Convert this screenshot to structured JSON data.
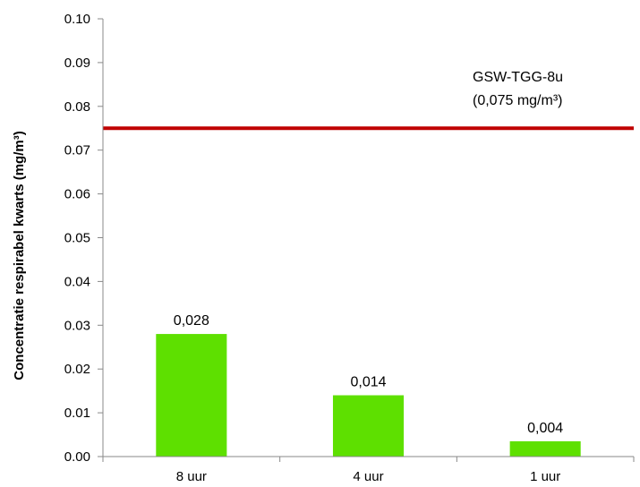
{
  "chart_data": {
    "type": "bar",
    "categories": [
      "8 uur",
      "4 uur",
      "1 uur"
    ],
    "values": [
      0.028,
      0.014,
      0.0035
    ],
    "data_labels": [
      "0,028",
      "0,014",
      "0,004"
    ],
    "ylabel": "Concentratie respirabel kwarts (mg/m³)",
    "ylim": [
      0,
      0.1
    ],
    "yticks": [
      0,
      0.01,
      0.02,
      0.03,
      0.04,
      0.05,
      0.06,
      0.07,
      0.08,
      0.09,
      0.1
    ],
    "ytick_labels": [
      "0.00",
      "0.01",
      "0.02",
      "0.03",
      "0.04",
      "0.05",
      "0.06",
      "0.07",
      "0.08",
      "0.09",
      "0.10"
    ],
    "grid": false,
    "bar_color": "#5ee000",
    "reference_line": {
      "value": 0.075,
      "label_line1": "GSW-TGG-8u",
      "label_line2": "(0,075 mg/m³)",
      "color": "#c00000"
    }
  }
}
